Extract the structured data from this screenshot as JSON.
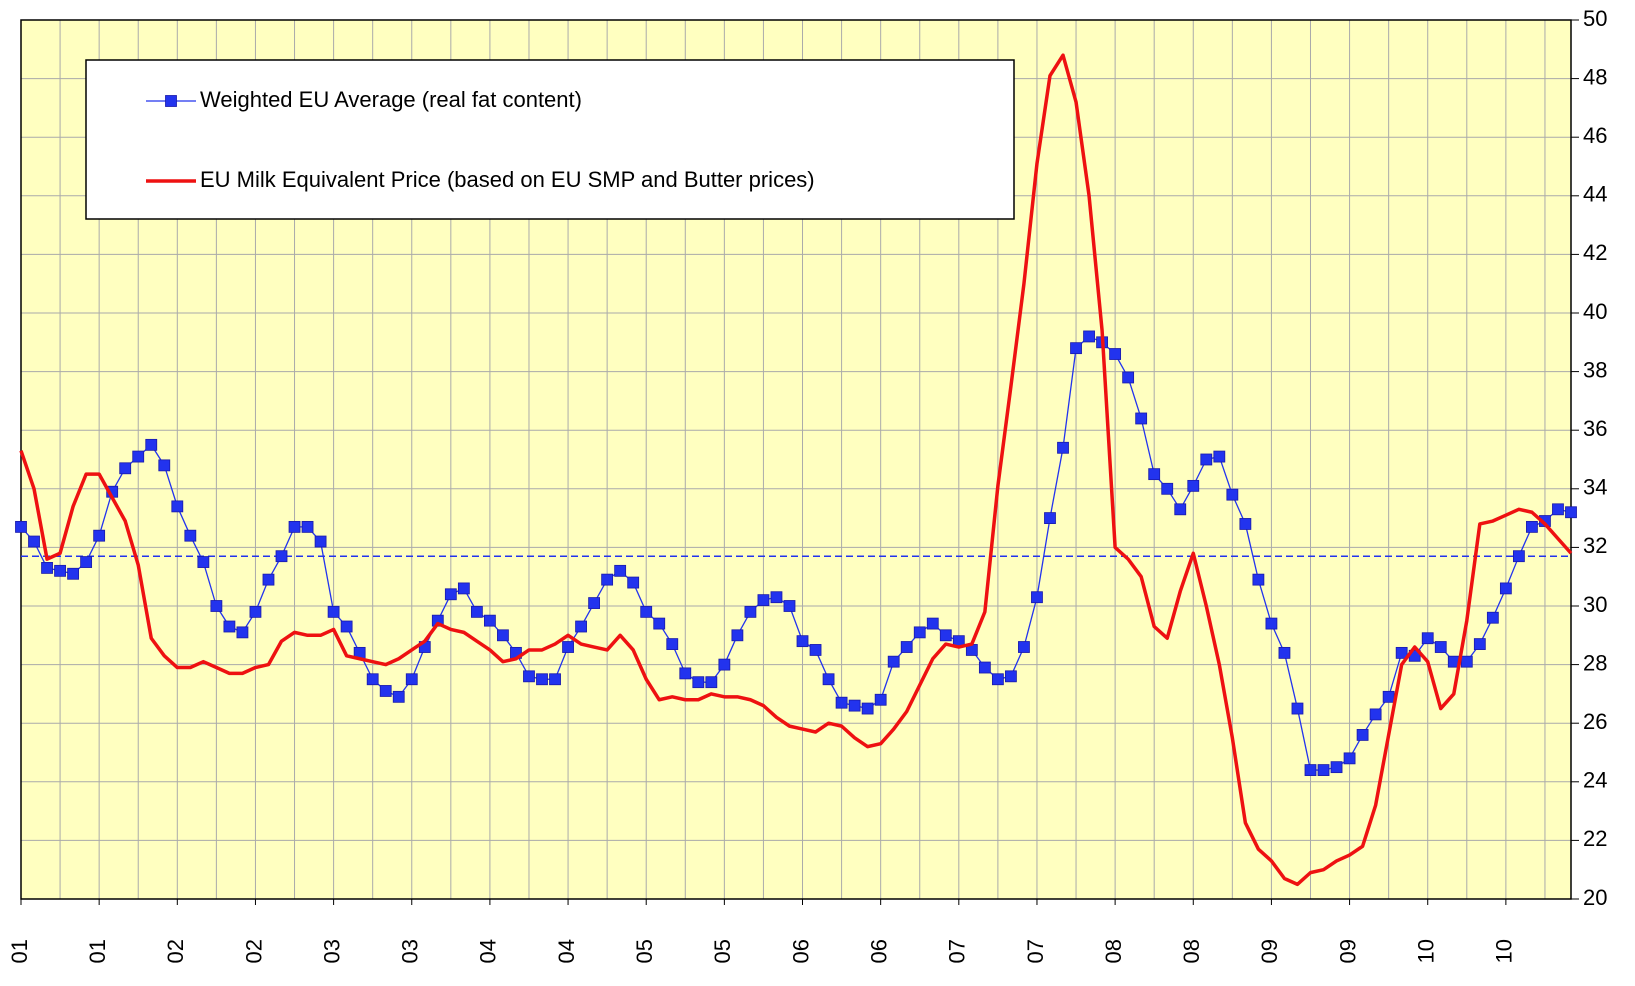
{
  "chart_data": {
    "type": "line",
    "categories": [
      "01",
      null,
      null,
      null,
      null,
      null,
      "01",
      null,
      null,
      null,
      null,
      null,
      "02",
      null,
      null,
      null,
      null,
      null,
      "02",
      null,
      null,
      null,
      null,
      null,
      "03",
      null,
      null,
      null,
      null,
      null,
      "03",
      null,
      null,
      null,
      null,
      null,
      "04",
      null,
      null,
      null,
      null,
      null,
      "04",
      null,
      null,
      null,
      null,
      null,
      "05",
      null,
      null,
      null,
      null,
      null,
      "05",
      null,
      null,
      null,
      null,
      null,
      "06",
      null,
      null,
      null,
      null,
      null,
      "06",
      null,
      null,
      null,
      null,
      null,
      "07",
      null,
      null,
      null,
      null,
      null,
      "07",
      null,
      null,
      null,
      null,
      null,
      "08",
      null,
      null,
      null,
      null,
      null,
      "08",
      null,
      null,
      null,
      null,
      null,
      "09",
      null,
      null,
      null,
      null,
      null,
      "09",
      null,
      null,
      null,
      null,
      null,
      "10",
      null,
      null,
      null,
      null,
      null,
      "10",
      null,
      null,
      null,
      null,
      null
    ],
    "series": [
      {
        "name": "Weighted EU Average (real fat content)",
        "color": "#2233ee",
        "marker": "square",
        "line_width": 1.3,
        "values": [
          32.7,
          32.2,
          31.3,
          31.2,
          31.1,
          31.5,
          32.4,
          33.9,
          34.7,
          35.1,
          35.5,
          34.8,
          33.4,
          32.4,
          31.5,
          30.0,
          29.3,
          29.1,
          29.8,
          30.9,
          31.7,
          32.7,
          32.7,
          32.2,
          29.8,
          29.3,
          28.4,
          27.5,
          27.1,
          26.9,
          27.5,
          28.6,
          29.5,
          30.4,
          30.6,
          29.8,
          29.5,
          29.0,
          28.4,
          27.6,
          27.5,
          27.5,
          28.6,
          29.3,
          30.1,
          30.9,
          31.2,
          30.8,
          29.8,
          29.4,
          28.7,
          27.7,
          27.4,
          27.4,
          28.0,
          29.0,
          29.8,
          30.2,
          30.3,
          30.0,
          28.8,
          28.5,
          27.5,
          26.7,
          26.6,
          26.5,
          26.8,
          28.1,
          28.6,
          29.1,
          29.4,
          29.0,
          28.8,
          28.5,
          27.9,
          27.5,
          27.6,
          28.6,
          30.3,
          33.0,
          35.4,
          38.8,
          39.2,
          39.0,
          38.6,
          37.8,
          36.4,
          34.5,
          34.0,
          33.3,
          34.1,
          35.0,
          35.1,
          33.8,
          32.8,
          30.9,
          29.4,
          28.4,
          26.5,
          24.4,
          24.4,
          24.5,
          24.8,
          25.6,
          26.3,
          26.9,
          28.4,
          28.3,
          28.9,
          28.6,
          28.1,
          28.1,
          28.7,
          29.6,
          30.6,
          31.7,
          32.7,
          32.9,
          33.3,
          33.2
        ]
      },
      {
        "name": "EU Milk Equivalent Price (based on EU SMP and Butter prices)",
        "color": "#ee1111",
        "marker": "none",
        "line_width": 3.5,
        "values": [
          35.3,
          34.0,
          31.6,
          31.8,
          33.4,
          34.5,
          34.5,
          33.7,
          32.9,
          31.4,
          28.9,
          28.3,
          27.9,
          27.9,
          28.1,
          27.9,
          27.7,
          27.7,
          27.9,
          28.0,
          28.8,
          29.1,
          29.0,
          29.0,
          29.2,
          28.3,
          28.2,
          28.1,
          28.0,
          28.2,
          28.5,
          28.8,
          29.4,
          29.2,
          29.1,
          28.8,
          28.5,
          28.1,
          28.2,
          28.5,
          28.5,
          28.7,
          29.0,
          28.7,
          28.6,
          28.5,
          29.0,
          28.5,
          27.5,
          26.8,
          26.9,
          26.8,
          26.8,
          27.0,
          26.9,
          26.9,
          26.8,
          26.6,
          26.2,
          25.9,
          25.8,
          25.7,
          26.0,
          25.9,
          25.5,
          25.2,
          25.3,
          25.8,
          26.4,
          27.3,
          28.2,
          28.7,
          28.6,
          28.7,
          29.8,
          34.1,
          37.5,
          41.0,
          45.1,
          48.1,
          48.8,
          47.2,
          44.0,
          39.4,
          32.0,
          31.6,
          31.0,
          29.3,
          28.9,
          30.5,
          31.8,
          30.0,
          28.0,
          25.5,
          22.6,
          21.7,
          21.3,
          20.7,
          20.5,
          20.9,
          21.0,
          21.3,
          21.5,
          21.8,
          23.2,
          25.6,
          28.0,
          28.6,
          28.1,
          26.5,
          27.0,
          29.5,
          32.8,
          32.9,
          33.1,
          33.3,
          33.2,
          32.8,
          32.3,
          31.8
        ]
      }
    ],
    "reference_line": {
      "value": 31.7,
      "color": "#2233ee"
    },
    "ylim": [
      20,
      50
    ],
    "yticks": [
      20,
      22,
      24,
      26,
      28,
      30,
      32,
      34,
      36,
      38,
      40,
      42,
      44,
      46,
      48,
      50
    ],
    "grid": true,
    "background": "#ffffc0",
    "legend": "upper left"
  }
}
